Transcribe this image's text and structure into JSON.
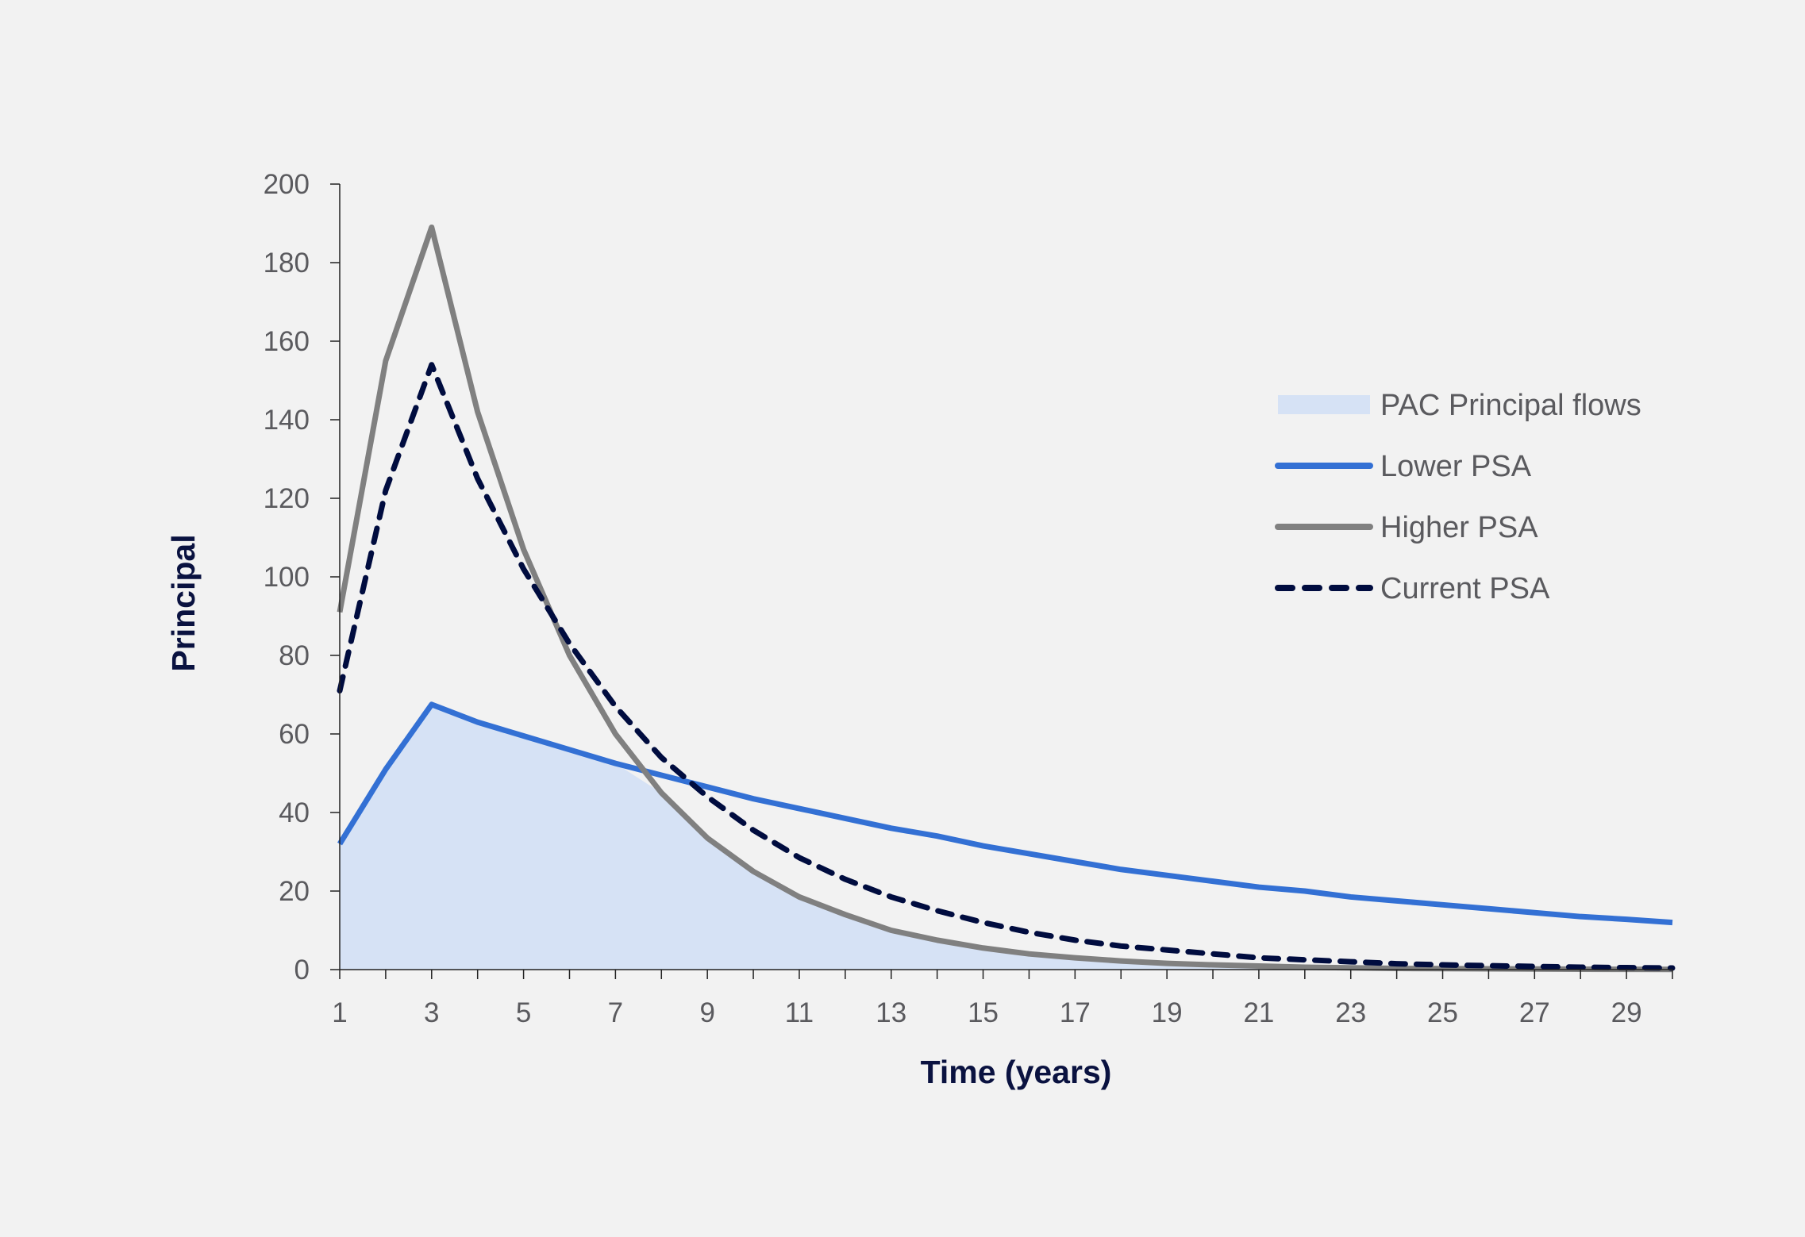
{
  "chart_data": {
    "type": "line",
    "title": "",
    "xlabel": "Time (years)",
    "ylabel": "Principal",
    "xlim": [
      1,
      30
    ],
    "ylim": [
      0,
      200
    ],
    "yticks": [
      0,
      20,
      40,
      60,
      80,
      100,
      120,
      140,
      160,
      180,
      200
    ],
    "xticks": [
      1,
      3,
      5,
      7,
      9,
      11,
      13,
      15,
      17,
      19,
      21,
      23,
      25,
      27,
      29
    ],
    "grid": false,
    "legend_position": "right",
    "x": [
      1,
      2,
      3,
      4,
      5,
      6,
      7,
      8,
      9,
      10,
      11,
      12,
      13,
      14,
      15,
      16,
      17,
      18,
      19,
      20,
      21,
      22,
      23,
      24,
      25,
      26,
      27,
      28,
      29,
      30
    ],
    "series": [
      {
        "name": "PAC Principal flows",
        "kind": "area",
        "color": "#d6e2f5",
        "values": [
          32,
          51,
          67.5,
          63,
          59.5,
          56,
          52.5,
          45,
          33.5,
          25,
          18.5,
          14,
          10,
          7.5,
          5.5,
          4,
          3,
          2.2,
          1.6,
          1.2,
          0.9,
          0.6,
          0.45,
          0.3,
          0.25,
          0.2,
          0.15,
          0.1,
          0.08,
          0.05
        ]
      },
      {
        "name": "Lower PSA",
        "kind": "line",
        "color": "#3370d4",
        "dash": false,
        "values": [
          32,
          51,
          67.5,
          63,
          59.5,
          56,
          52.5,
          49.5,
          46.5,
          43.5,
          41,
          38.5,
          36,
          34,
          31.5,
          29.5,
          27.5,
          25.5,
          24,
          22.5,
          21,
          20,
          18.5,
          17.5,
          16.5,
          15.5,
          14.5,
          13.5,
          12.8,
          12
        ]
      },
      {
        "name": "Higher PSA",
        "kind": "line",
        "color": "#808080",
        "dash": false,
        "values": [
          91,
          155,
          189,
          142,
          107,
          80,
          60,
          45,
          33.5,
          25,
          18.5,
          14,
          10,
          7.5,
          5.5,
          4,
          3,
          2.2,
          1.6,
          1.2,
          0.9,
          0.6,
          0.45,
          0.3,
          0.25,
          0.2,
          0.15,
          0.1,
          0.08,
          0.05
        ]
      },
      {
        "name": "Current PSA",
        "kind": "line",
        "color": "#000c3f",
        "dash": true,
        "values": [
          71,
          122,
          154,
          125,
          102,
          83,
          67,
          54,
          44,
          35.5,
          28.5,
          23,
          18.5,
          15,
          12,
          9.5,
          7.5,
          6,
          5,
          4,
          3,
          2.5,
          2,
          1.5,
          1.2,
          1,
          0.8,
          0.6,
          0.5,
          0.4
        ]
      }
    ]
  }
}
